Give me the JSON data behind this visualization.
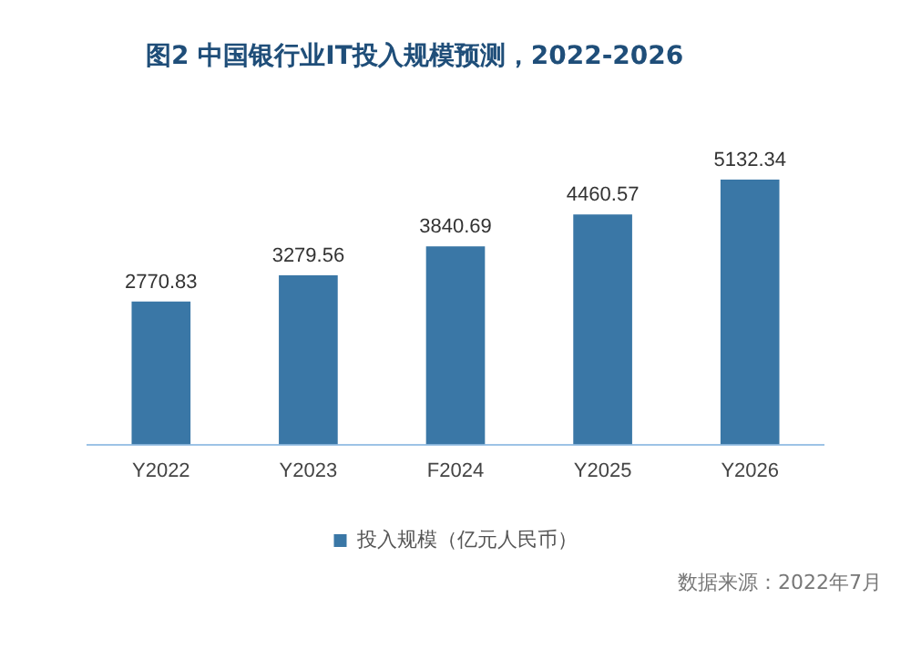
{
  "chart_data": {
    "type": "bar",
    "title": "图2  中国银行业IT投入规模预测，2022-2026",
    "categories": [
      "Y2022",
      "Y2023",
      "F2024",
      "Y2025",
      "Y2026"
    ],
    "series": [
      {
        "name": "投入规模（亿元人民币）",
        "color": "#3a77a6",
        "values": [
          2770.83,
          3279.56,
          3840.69,
          4460.57,
          5132.34
        ]
      }
    ],
    "data_labels": true,
    "grid": false,
    "legend": "bottom",
    "annotations": [
      "数据来源：2022年7月"
    ]
  }
}
